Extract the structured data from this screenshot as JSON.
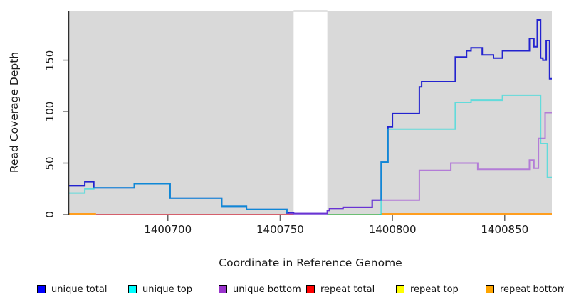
{
  "chart_data": {
    "type": "line",
    "subtype": "step-coverage",
    "title": "",
    "xlabel": "Coordinate in Reference Genome",
    "ylabel": "Read Coverage Depth",
    "xlim": [
      1400656,
      1400871
    ],
    "ylim": [
      0,
      198
    ],
    "xticks": [
      1400700,
      1400750,
      1400800,
      1400850
    ],
    "yticks": [
      0,
      50,
      100,
      150
    ],
    "grid": false,
    "panel_background": "#d9d9d9",
    "axis_color": "#2f2f2f",
    "tick_color": "#666666",
    "gap_region": {
      "x0": 1400756,
      "x1": 1400771,
      "fill": "#ffffff",
      "top_border_color": "#8c8c8c"
    },
    "legend_position": "bottom",
    "series": [
      {
        "name": "unique total",
        "legend_color": "#0000ff",
        "line_color": "#2323cf",
        "opacity": 1,
        "zorder": 1,
        "draw": true,
        "points": [
          [
            1400656,
            28
          ],
          [
            1400663,
            32
          ],
          [
            1400667,
            26
          ],
          [
            1400685,
            30
          ],
          [
            1400701,
            16
          ],
          [
            1400724,
            8
          ],
          [
            1400735,
            5
          ],
          [
            1400753,
            1.5
          ],
          [
            1400756,
            1
          ],
          [
            1400771,
            4
          ],
          [
            1400772,
            6
          ],
          [
            1400778,
            7
          ],
          [
            1400791,
            14
          ],
          [
            1400795,
            51
          ],
          [
            1400798,
            85
          ],
          [
            1400800,
            98
          ],
          [
            1400812,
            124
          ],
          [
            1400813,
            129
          ],
          [
            1400828,
            153
          ],
          [
            1400833,
            159
          ],
          [
            1400835,
            162
          ],
          [
            1400840,
            155
          ],
          [
            1400845,
            152
          ],
          [
            1400849,
            159
          ],
          [
            1400861,
            171
          ],
          [
            1400863,
            163
          ],
          [
            1400864.5,
            189
          ],
          [
            1400866,
            152
          ],
          [
            1400867,
            150
          ],
          [
            1400868.5,
            169
          ],
          [
            1400870,
            132
          ],
          [
            1400871,
            132
          ]
        ]
      },
      {
        "name": "unique top",
        "legend_color": "#00ffff",
        "line_color": "#00dcdc",
        "opacity": 0.55,
        "zorder": 3,
        "draw": true,
        "points": [
          [
            1400656,
            21
          ],
          [
            1400663,
            25
          ],
          [
            1400667,
            26
          ],
          [
            1400685,
            30
          ],
          [
            1400701,
            16
          ],
          [
            1400724,
            8
          ],
          [
            1400735,
            5
          ],
          [
            1400753,
            1.5
          ],
          [
            1400756,
            null
          ],
          [
            1400794,
            0
          ],
          [
            1400795,
            51
          ],
          [
            1400798,
            83
          ],
          [
            1400828,
            109
          ],
          [
            1400835,
            111
          ],
          [
            1400849,
            116
          ],
          [
            1400866,
            69
          ],
          [
            1400869,
            36
          ],
          [
            1400871,
            36
          ]
        ]
      },
      {
        "name": "unique bottom",
        "legend_color": "#9933cc",
        "line_color": "#9a3dd6",
        "opacity": 0.6,
        "zorder": 2,
        "draw": true,
        "points": [
          [
            1400656,
            6
          ],
          [
            1400668,
            null
          ],
          [
            1400754,
            1
          ],
          [
            1400771,
            4
          ],
          [
            1400772,
            6
          ],
          [
            1400778,
            7
          ],
          [
            1400791,
            14
          ],
          [
            1400812,
            43
          ],
          [
            1400826,
            50
          ],
          [
            1400838,
            44
          ],
          [
            1400861,
            53
          ],
          [
            1400863,
            45
          ],
          [
            1400865,
            74
          ],
          [
            1400868,
            99
          ],
          [
            1400871,
            99
          ]
        ]
      },
      {
        "name": "repeat total",
        "legend_color": "#ff0000",
        "line_color": "#d4606c",
        "opacity": 1,
        "zorder": 0,
        "draw": false,
        "points": [
          [
            1400656,
            0
          ],
          [
            1400871,
            0
          ]
        ]
      },
      {
        "name": "repeat top",
        "legend_color": "#ffff00",
        "line_color": "#ffff00",
        "opacity": 1,
        "zorder": 0,
        "draw": false,
        "points": [
          [
            1400656,
            0
          ],
          [
            1400871,
            0
          ]
        ]
      },
      {
        "name": "repeat bottom",
        "legend_color": "#ffa500",
        "line_color": "#ff9e1f",
        "opacity": 1,
        "zorder": 0,
        "draw": false,
        "points": [
          [
            1400656,
            1
          ],
          [
            1400668,
            0
          ],
          [
            1400795,
            1
          ],
          [
            1400871,
            1
          ]
        ]
      }
    ],
    "baseline_segments": [
      {
        "name": "repeat-bottom-left",
        "color": "#ff9e1f",
        "y": 0.7,
        "x0": 1400656,
        "x1": 1400668
      },
      {
        "name": "repeat-total-baseline",
        "color": "#d4606c",
        "y": 0,
        "x0": 1400668,
        "x1": 1400756
      },
      {
        "name": "overlap-baseline-green",
        "color": "#6cbe74",
        "y": 0,
        "x0": 1400771,
        "x1": 1400795
      },
      {
        "name": "repeat-bottom-right",
        "color": "#ff9e1f",
        "y": 0.7,
        "x0": 1400795,
        "x1": 1400871
      }
    ]
  },
  "legend": {
    "items": [
      {
        "label": "unique total",
        "color": "#0000ff"
      },
      {
        "label": "unique top",
        "color": "#00ffff"
      },
      {
        "label": "unique bottom",
        "color": "#9933cc"
      },
      {
        "label": "repeat total",
        "color": "#ff0000"
      },
      {
        "label": "repeat top",
        "color": "#ffff00"
      },
      {
        "label": "repeat bottom",
        "color": "#ffa500"
      }
    ]
  }
}
